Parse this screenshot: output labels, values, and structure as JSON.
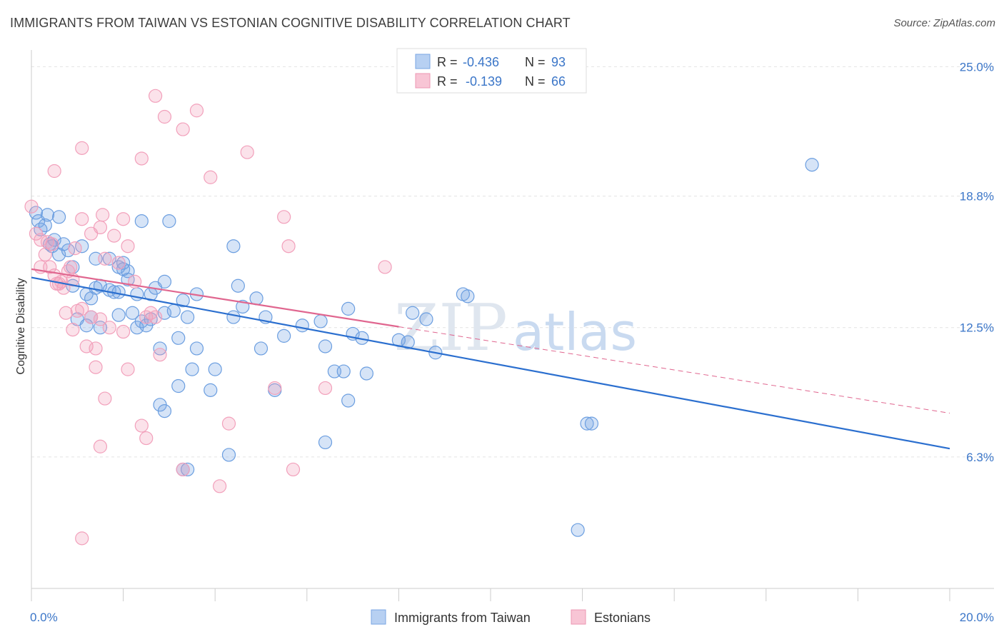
{
  "title": "IMMIGRANTS FROM TAIWAN VS ESTONIAN COGNITIVE DISABILITY CORRELATION CHART",
  "source": "Source: ZipAtlas.com",
  "watermark": {
    "zip": "ZIP",
    "atlas": "atlas"
  },
  "chart_data": {
    "type": "scatter",
    "ylabel": "Cognitive Disability",
    "xlim": [
      0,
      20
    ],
    "ylim": [
      0,
      25.8
    ],
    "x_tick_labels": [
      {
        "value": 0,
        "label": "0.0%"
      },
      {
        "value": 20,
        "label": "20.0%"
      }
    ],
    "y_tick_labels": [
      {
        "value": 6.3,
        "label": "6.3%"
      },
      {
        "value": 12.5,
        "label": "12.5%"
      },
      {
        "value": 18.8,
        "label": "18.8%"
      },
      {
        "value": 25.0,
        "label": "25.0%"
      }
    ],
    "grid": true,
    "legend": {
      "placement": "top-center",
      "entries": [
        {
          "r_label": "R =",
          "r_value": "-0.436",
          "n_label": "N =",
          "n_value": "93"
        },
        {
          "r_label": "R =",
          "r_value": "-0.139",
          "n_label": "N =",
          "n_value": "66"
        }
      ]
    },
    "series": [
      {
        "name": "Immigrants from Taiwan",
        "color": "#6b9ee0",
        "trend": {
          "x": [
            0,
            20
          ],
          "y": [
            14.9,
            6.7
          ],
          "color": "#2b6fcf"
        },
        "points": [
          [
            0.1,
            18.0
          ],
          [
            0.15,
            17.6
          ],
          [
            0.2,
            17.2
          ],
          [
            0.3,
            17.4
          ],
          [
            0.4,
            16.5
          ],
          [
            0.5,
            16.7
          ],
          [
            0.6,
            16.0
          ],
          [
            0.7,
            16.5
          ],
          [
            0.8,
            16.2
          ],
          [
            1.1,
            16.4
          ],
          [
            0.6,
            17.8
          ],
          [
            0.9,
            15.4
          ],
          [
            1.4,
            15.8
          ],
          [
            1.7,
            15.8
          ],
          [
            1.9,
            15.4
          ],
          [
            2.0,
            15.6
          ],
          [
            2.1,
            15.2
          ],
          [
            2.4,
            17.6
          ],
          [
            3.0,
            17.6
          ],
          [
            4.4,
            16.4
          ],
          [
            0.9,
            14.5
          ],
          [
            1.2,
            14.1
          ],
          [
            1.3,
            13.9
          ],
          [
            1.4,
            14.4
          ],
          [
            1.5,
            14.5
          ],
          [
            1.7,
            14.3
          ],
          [
            1.8,
            14.2
          ],
          [
            2.1,
            14.8
          ],
          [
            2.3,
            14.1
          ],
          [
            2.6,
            14.1
          ],
          [
            2.7,
            14.4
          ],
          [
            2.9,
            14.7
          ],
          [
            3.3,
            13.8
          ],
          [
            3.6,
            14.1
          ],
          [
            1.0,
            12.9
          ],
          [
            1.2,
            12.6
          ],
          [
            1.3,
            13.0
          ],
          [
            1.5,
            12.5
          ],
          [
            1.9,
            13.1
          ],
          [
            2.2,
            13.2
          ],
          [
            2.3,
            12.5
          ],
          [
            2.4,
            12.8
          ],
          [
            2.5,
            12.6
          ],
          [
            2.6,
            12.9
          ],
          [
            2.9,
            13.2
          ],
          [
            3.1,
            13.3
          ],
          [
            3.4,
            13.0
          ],
          [
            4.4,
            13.0
          ],
          [
            4.5,
            14.5
          ],
          [
            4.6,
            13.5
          ],
          [
            4.9,
            13.9
          ],
          [
            5.1,
            13.0
          ],
          [
            5.5,
            12.1
          ],
          [
            5.9,
            12.6
          ],
          [
            6.4,
            11.6
          ],
          [
            6.3,
            12.8
          ],
          [
            6.6,
            10.4
          ],
          [
            6.8,
            10.4
          ],
          [
            6.9,
            13.4
          ],
          [
            7.0,
            12.2
          ],
          [
            7.2,
            12.0
          ],
          [
            7.3,
            10.3
          ],
          [
            8.0,
            11.9
          ],
          [
            8.2,
            11.8
          ],
          [
            8.3,
            13.2
          ],
          [
            8.6,
            12.9
          ],
          [
            8.8,
            11.3
          ],
          [
            9.4,
            14.1
          ],
          [
            9.5,
            14.0
          ],
          [
            3.2,
            12.0
          ],
          [
            2.8,
            11.5
          ],
          [
            3.6,
            11.5
          ],
          [
            5.0,
            11.5
          ],
          [
            3.5,
            10.5
          ],
          [
            4.0,
            10.5
          ],
          [
            3.2,
            9.7
          ],
          [
            3.9,
            9.5
          ],
          [
            5.3,
            9.5
          ],
          [
            6.9,
            9.0
          ],
          [
            2.8,
            8.8
          ],
          [
            2.9,
            8.5
          ],
          [
            6.4,
            7.0
          ],
          [
            4.3,
            6.4
          ],
          [
            3.3,
            5.7
          ],
          [
            3.4,
            5.7
          ],
          [
            12.1,
            7.9
          ],
          [
            12.2,
            7.9
          ],
          [
            11.9,
            2.8
          ],
          [
            17.0,
            20.3
          ],
          [
            0.35,
            17.9
          ],
          [
            0.45,
            16.4
          ],
          [
            1.9,
            14.2
          ],
          [
            2.0,
            15.3
          ]
        ]
      },
      {
        "name": "Estonians",
        "color": "#f2a0bb",
        "trend": {
          "x": [
            0,
            20
          ],
          "y": [
            15.3,
            8.4
          ],
          "solid_until": 8.0,
          "color": "#e0668f"
        },
        "points": [
          [
            0.0,
            18.3
          ],
          [
            0.1,
            17.0
          ],
          [
            0.2,
            16.7
          ],
          [
            0.3,
            16.0
          ],
          [
            0.4,
            15.4
          ],
          [
            0.5,
            15.0
          ],
          [
            0.6,
            14.6
          ],
          [
            0.7,
            14.4
          ],
          [
            0.8,
            15.2
          ],
          [
            0.9,
            14.8
          ],
          [
            0.2,
            15.4
          ],
          [
            0.35,
            16.6
          ],
          [
            0.45,
            16.5
          ],
          [
            0.55,
            14.6
          ],
          [
            0.65,
            14.7
          ],
          [
            0.75,
            13.2
          ],
          [
            0.85,
            15.4
          ],
          [
            0.95,
            16.3
          ],
          [
            1.1,
            17.7
          ],
          [
            1.3,
            17.0
          ],
          [
            1.5,
            17.3
          ],
          [
            1.55,
            17.9
          ],
          [
            1.6,
            15.8
          ],
          [
            1.8,
            16.9
          ],
          [
            1.9,
            15.6
          ],
          [
            2.0,
            17.7
          ],
          [
            2.1,
            16.4
          ],
          [
            2.25,
            14.7
          ],
          [
            2.5,
            13.0
          ],
          [
            2.6,
            13.2
          ],
          [
            2.7,
            13.0
          ],
          [
            1.0,
            13.3
          ],
          [
            1.1,
            13.4
          ],
          [
            1.3,
            13.0
          ],
          [
            1.5,
            12.9
          ],
          [
            1.7,
            12.5
          ],
          [
            2.0,
            12.3
          ],
          [
            0.9,
            12.4
          ],
          [
            1.2,
            11.6
          ],
          [
            1.4,
            11.5
          ],
          [
            1.4,
            10.6
          ],
          [
            2.1,
            10.5
          ],
          [
            2.8,
            11.2
          ],
          [
            1.6,
            9.1
          ],
          [
            2.4,
            7.8
          ],
          [
            2.5,
            7.2
          ],
          [
            1.5,
            6.8
          ],
          [
            3.3,
            5.7
          ],
          [
            4.3,
            7.9
          ],
          [
            4.1,
            4.9
          ],
          [
            5.3,
            9.6
          ],
          [
            5.7,
            5.7
          ],
          [
            6.4,
            9.6
          ],
          [
            7.7,
            15.4
          ],
          [
            5.6,
            16.4
          ],
          [
            5.5,
            17.8
          ],
          [
            4.7,
            20.9
          ],
          [
            3.9,
            19.7
          ],
          [
            3.6,
            22.9
          ],
          [
            3.3,
            22.0
          ],
          [
            2.9,
            22.6
          ],
          [
            2.7,
            23.6
          ],
          [
            2.4,
            20.6
          ],
          [
            1.1,
            21.1
          ],
          [
            0.5,
            20.0
          ],
          [
            1.1,
            2.4
          ]
        ]
      }
    ]
  }
}
